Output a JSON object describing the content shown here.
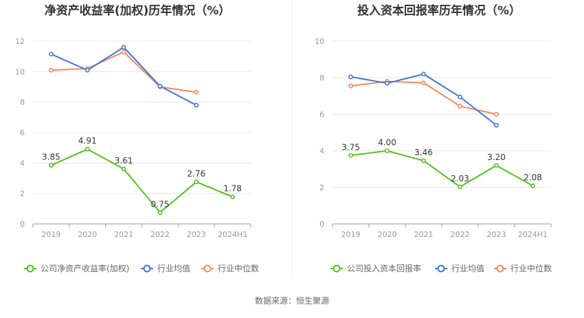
{
  "chart_data": [
    {
      "type": "line",
      "title": "净资产收益率(加权)历年情况（%）",
      "xlabel": "",
      "ylabel": "",
      "categories": [
        "2019",
        "2020",
        "2021",
        "2022",
        "2023",
        "2024H1"
      ],
      "ylim": [
        0,
        12
      ],
      "yticks": [
        0,
        2,
        4,
        6,
        8,
        10,
        12
      ],
      "grid": true,
      "legend_position": "bottom",
      "series": [
        {
          "name": "公司净资产收益率(加权)",
          "color": "#52c41a",
          "values": [
            3.85,
            4.91,
            3.61,
            0.75,
            2.76,
            1.78
          ],
          "labels": [
            "3.85",
            "4.91",
            "3.61",
            "0.75",
            "2.76",
            "1.78"
          ]
        },
        {
          "name": "行业均值",
          "color": "#3f74db",
          "values": [
            11.15,
            10.1,
            11.6,
            9.05,
            7.8,
            null
          ]
        },
        {
          "name": "行业中位数",
          "color": "#f3875f",
          "values": [
            10.1,
            10.2,
            11.3,
            9.0,
            8.65,
            null
          ]
        }
      ]
    },
    {
      "type": "line",
      "title": "投入资本回报率历年情况（%）",
      "xlabel": "",
      "ylabel": "",
      "categories": [
        "2019",
        "2020",
        "2021",
        "2022",
        "2023",
        "2024H1"
      ],
      "ylim": [
        0,
        10
      ],
      "yticks": [
        0,
        2,
        4,
        6,
        8,
        10
      ],
      "grid": true,
      "legend_position": "bottom",
      "series": [
        {
          "name": "公司投入资本回报率",
          "color": "#52c41a",
          "values": [
            3.75,
            4.0,
            3.46,
            2.03,
            3.2,
            2.08
          ],
          "labels": [
            "3.75",
            "4.00",
            "3.46",
            "2.03",
            "3.20",
            "2.08"
          ]
        },
        {
          "name": "行业均值",
          "color": "#3f74db",
          "values": [
            8.05,
            7.7,
            8.2,
            6.95,
            5.4,
            null
          ]
        },
        {
          "name": "行业中位数",
          "color": "#f3875f",
          "values": [
            7.55,
            7.8,
            7.72,
            6.45,
            6.0,
            null
          ]
        }
      ]
    }
  ],
  "footer": {
    "source": "数据来源：恒生聚源"
  }
}
